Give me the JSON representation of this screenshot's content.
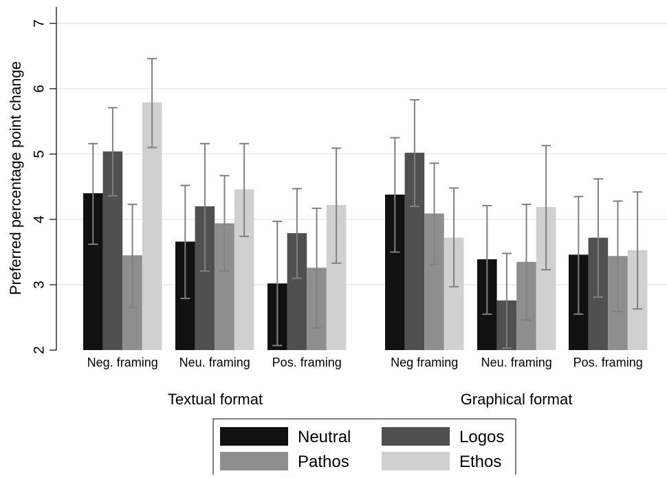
{
  "chart_data": {
    "type": "bar",
    "ylabel": "Preferred percentage point change",
    "ylim": [
      2,
      7
    ],
    "yticks": [
      2,
      3,
      4,
      5,
      6,
      7
    ],
    "grid": true,
    "legend_position": "bottom-center",
    "groups": [
      {
        "label": "Textual format",
        "categories": [
          "Neg. framing",
          "Neu. framing",
          "Pos. framing"
        ]
      },
      {
        "label": "Graphical format",
        "categories": [
          "Neg framing",
          "Neu. framing",
          "Pos. framing"
        ]
      }
    ],
    "series": [
      {
        "name": "Neutral",
        "color": "#111111",
        "values": [
          4.4,
          3.66,
          3.02,
          4.38,
          3.39,
          3.46
        ],
        "ci_low": [
          3.62,
          2.79,
          2.07,
          3.5,
          2.55,
          2.55
        ],
        "ci_high": [
          5.16,
          4.52,
          3.97,
          5.25,
          4.21,
          4.35
        ]
      },
      {
        "name": "Logos",
        "color": "#505050",
        "values": [
          5.04,
          4.2,
          3.79,
          5.02,
          2.76,
          3.72
        ],
        "ci_low": [
          4.36,
          3.21,
          3.1,
          4.2,
          2.03,
          2.81
        ],
        "ci_high": [
          5.71,
          5.16,
          4.47,
          5.83,
          3.48,
          4.62
        ]
      },
      {
        "name": "Pathos",
        "color": "#8e8e8e",
        "values": [
          3.45,
          3.94,
          3.26,
          4.09,
          3.35,
          3.44
        ],
        "ci_low": [
          2.65,
          3.21,
          2.34,
          3.31,
          2.46,
          2.59
        ],
        "ci_high": [
          4.23,
          4.67,
          4.17,
          4.86,
          4.23,
          4.28
        ]
      },
      {
        "name": "Ethos",
        "color": "#d0d0d0",
        "values": [
          5.79,
          4.46,
          4.22,
          3.72,
          4.19,
          3.53
        ],
        "ci_low": [
          5.1,
          3.74,
          3.33,
          2.97,
          3.23,
          2.63
        ],
        "ci_high": [
          6.46,
          5.16,
          5.09,
          4.48,
          5.13,
          4.42
        ]
      }
    ]
  }
}
